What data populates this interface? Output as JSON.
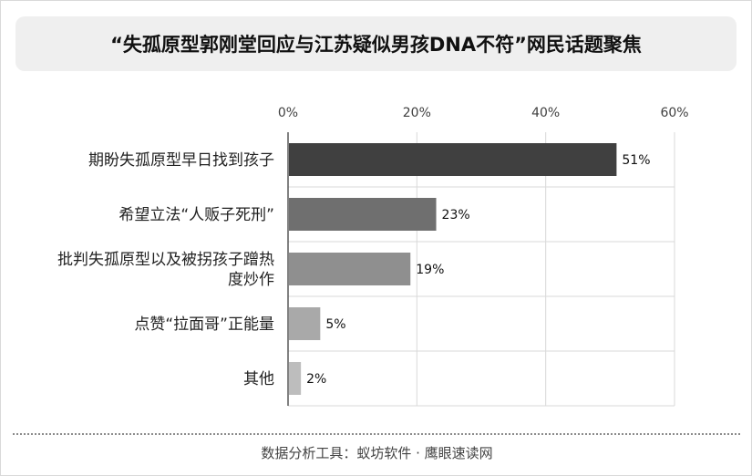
{
  "title": "“失孤原型郭刚堂回应与江苏疑似男孩DNA不符”网民话题聚焦",
  "source": "数据分析工具：蚁坊软件 · 鹰眼速读网",
  "chart_data": {
    "type": "bar",
    "orientation": "horizontal",
    "title": "“失孤原型郭刚堂回应与江苏疑似男孩DNA不符”网民话题聚焦",
    "categories": [
      [
        "期盼失孤原型早日找到孩子"
      ],
      [
        "希望立法“人贩子死刑”"
      ],
      [
        "批判失孤原型以及被拐孩子蹭热",
        "度炒作"
      ],
      [
        "点赞“拉面哥”正能量"
      ],
      [
        "其他"
      ]
    ],
    "values": [
      51,
      23,
      19,
      5,
      2
    ],
    "value_labels": [
      "51%",
      "23%",
      "19%",
      "5%",
      "2%"
    ],
    "xlim": [
      0,
      60
    ],
    "xticks": [
      0,
      20,
      40,
      60
    ],
    "xtick_labels": [
      "0%",
      "20%",
      "40%",
      "60%"
    ],
    "x_axis_position": "top",
    "grid": "vertical",
    "bar_colors": [
      "#404040",
      "#6f6f6f",
      "#8f8f8f",
      "#a9a9a9",
      "#bdbdbd"
    ],
    "grid_color": "#d9d9d9",
    "axis_color": "#595959",
    "xlabel": "",
    "ylabel": ""
  }
}
